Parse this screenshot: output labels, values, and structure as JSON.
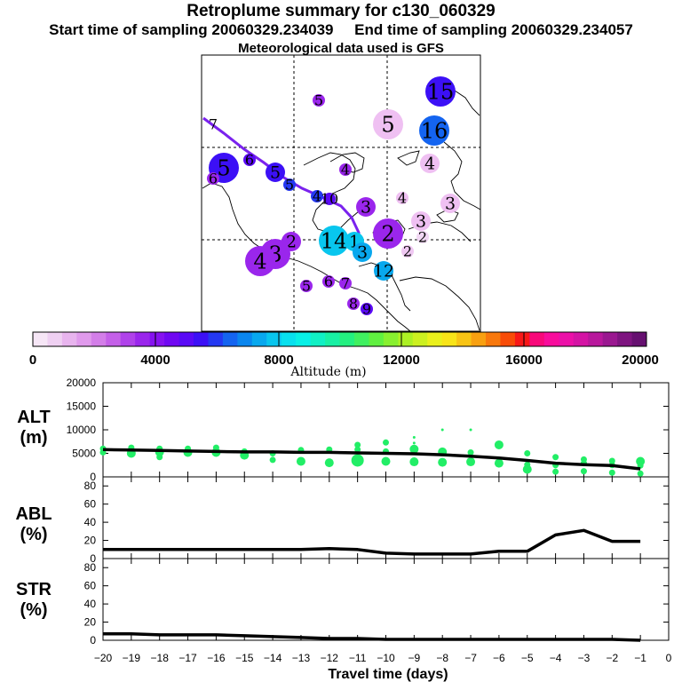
{
  "header": {
    "title": "Retroplume summary for c130_060329",
    "subtitle": "Start time of sampling 20060329.234039     End time of sampling 20060329.234057",
    "met_line": "Meteorological data used is GFS"
  },
  "colors": {
    "trajectory": "#7a22ee",
    "alt_points": "#22ee66",
    "line": "#000000",
    "colorbar": [
      "#f6e6f6",
      "#efd0f2",
      "#e8b4ee",
      "#e09aec",
      "#d37ee8",
      "#c460e8",
      "#b042ea",
      "#9a26ec",
      "#8612f0",
      "#7008f2",
      "#5a0af6",
      "#3c10f6",
      "#2438f2",
      "#1464f0",
      "#0a86ee",
      "#08a8ee",
      "#08c6ee",
      "#08e0ee",
      "#08f0e6",
      "#10f0c4",
      "#18f0a4",
      "#24f080",
      "#40f060",
      "#60f040",
      "#88f030",
      "#acf024",
      "#ccf020",
      "#eaf01c",
      "#f8e418",
      "#f8c414",
      "#f8a010",
      "#f8780c",
      "#f84c08",
      "#f81818",
      "#f8087a",
      "#f80c9c",
      "#ec10a8",
      "#d414a4",
      "#b8189c",
      "#9a1890",
      "#7e1480",
      "#661070"
    ]
  },
  "map": {
    "plumes": [
      {
        "label": "15",
        "color": "#3c10f6",
        "size": 3
      },
      {
        "label": "16",
        "color": "#1464f0",
        "size": 3
      },
      {
        "label": "5",
        "color": "#efc0f2",
        "size": 3
      },
      {
        "label": "4",
        "color": "#efc0f2",
        "size": 2
      },
      {
        "label": "3",
        "color": "#efc0f2",
        "size": 2
      },
      {
        "label": "3",
        "color": "#efc0f2",
        "size": 2
      },
      {
        "label": "2",
        "color": "#f2d8f4",
        "size": 1
      },
      {
        "label": "2",
        "color": "#efc8f2",
        "size": 1
      },
      {
        "label": "4",
        "color": "#efc0f2",
        "size": 1
      },
      {
        "label": "5",
        "color": "#9a26ec",
        "size": 1
      },
      {
        "label": "4",
        "color": "#9a26ec",
        "size": 1
      },
      {
        "label": "5",
        "color": "#3c10f6",
        "size": 3
      },
      {
        "label": "6",
        "color": "#9a26ec",
        "size": 1
      },
      {
        "label": "6",
        "color": "#5a0af6",
        "size": 1
      },
      {
        "label": "5",
        "color": "#3c10f6",
        "size": 2
      },
      {
        "label": "5",
        "color": "#2438f2",
        "size": 1
      },
      {
        "label": "4",
        "color": "#2438f2",
        "size": 1
      },
      {
        "label": "3",
        "color": "#9a26ec",
        "size": 2
      },
      {
        "label": "2",
        "color": "#9a26ec",
        "size": 3
      },
      {
        "label": "14",
        "color": "#08c6ee",
        "size": 3
      },
      {
        "label": "1",
        "color": "#08c6ee",
        "size": 2
      },
      {
        "label": "3",
        "color": "#08a8ee",
        "size": 2
      },
      {
        "label": "2",
        "color": "#9a26ec",
        "size": 2
      },
      {
        "label": "3",
        "color": "#9a26ec",
        "size": 3
      },
      {
        "label": "4",
        "color": "#9a26ec",
        "size": 3
      },
      {
        "label": "12",
        "color": "#08a8ee",
        "size": 2
      },
      {
        "label": "5",
        "color": "#9a26ec",
        "size": 1
      },
      {
        "label": "6",
        "color": "#9a26ec",
        "size": 1
      },
      {
        "label": "7",
        "color": "#9a26ec",
        "size": 1
      },
      {
        "label": "8",
        "color": "#9a26ec",
        "size": 1
      },
      {
        "label": "9",
        "color": "#5a0af6",
        "size": 1
      },
      {
        "label": "10",
        "color": "#5a0af6",
        "size": 1
      },
      {
        "label": "7",
        "color": "#9a26ec",
        "size": 0
      }
    ]
  },
  "colorbar": {
    "ticks": [
      "0",
      "4000",
      "8000",
      "12000",
      "16000",
      "20000"
    ],
    "label": "Altitude (m)"
  },
  "chart_data": [
    {
      "type": "line",
      "name": "ALT",
      "ylabel_top": "ALT",
      "ylabel_bottom": "(m)",
      "ylim": [
        0,
        20000
      ],
      "yticks": [
        "0",
        "5000",
        "10000",
        "15000",
        "20000"
      ],
      "x": [
        -20,
        -19,
        -18,
        -17,
        -16,
        -15,
        -14,
        -13,
        -12,
        -11,
        -10,
        -9,
        -8,
        -7,
        -6,
        -5,
        -4,
        -3,
        -2,
        -1
      ],
      "values": [
        5800,
        5700,
        5600,
        5500,
        5400,
        5300,
        5300,
        5200,
        5200,
        5100,
        5000,
        4900,
        4700,
        4400,
        4000,
        3500,
        2900,
        2600,
        2400,
        1700
      ],
      "scatter": [
        {
          "x": -20,
          "y": 6000,
          "s": 1
        },
        {
          "x": -20,
          "y": 5200,
          "s": 1
        },
        {
          "x": -19,
          "y": 6200,
          "s": 1
        },
        {
          "x": -19,
          "y": 5000,
          "s": 2
        },
        {
          "x": -18,
          "y": 6000,
          "s": 1
        },
        {
          "x": -18,
          "y": 5300,
          "s": 2
        },
        {
          "x": -18,
          "y": 4200,
          "s": 1
        },
        {
          "x": -17,
          "y": 6000,
          "s": 1
        },
        {
          "x": -17,
          "y": 5200,
          "s": 2
        },
        {
          "x": -16,
          "y": 6200,
          "s": 1
        },
        {
          "x": -16,
          "y": 5200,
          "s": 2
        },
        {
          "x": -15,
          "y": 5400,
          "s": 1
        },
        {
          "x": -15,
          "y": 4600,
          "s": 2
        },
        {
          "x": -14,
          "y": 5000,
          "s": 1
        },
        {
          "x": -14,
          "y": 3600,
          "s": 1
        },
        {
          "x": -13,
          "y": 5700,
          "s": 1
        },
        {
          "x": -13,
          "y": 3300,
          "s": 2
        },
        {
          "x": -12,
          "y": 5800,
          "s": 1
        },
        {
          "x": -12,
          "y": 3000,
          "s": 2
        },
        {
          "x": -11,
          "y": 6800,
          "s": 1
        },
        {
          "x": -11,
          "y": 5800,
          "s": 1
        },
        {
          "x": -11,
          "y": 3500,
          "s": 3
        },
        {
          "x": -10,
          "y": 7300,
          "s": 1
        },
        {
          "x": -10,
          "y": 5400,
          "s": 1
        },
        {
          "x": -10,
          "y": 3300,
          "s": 2
        },
        {
          "x": -9,
          "y": 8400,
          "s": 0
        },
        {
          "x": -9,
          "y": 7200,
          "s": 0
        },
        {
          "x": -9,
          "y": 5900,
          "s": 2
        },
        {
          "x": -9,
          "y": 3200,
          "s": 2
        },
        {
          "x": -8,
          "y": 10000,
          "s": 0
        },
        {
          "x": -8,
          "y": 5300,
          "s": 2
        },
        {
          "x": -8,
          "y": 3100,
          "s": 2
        },
        {
          "x": -7,
          "y": 10000,
          "s": 0
        },
        {
          "x": -7,
          "y": 5200,
          "s": 1
        },
        {
          "x": -7,
          "y": 3200,
          "s": 2
        },
        {
          "x": -6,
          "y": 6800,
          "s": 2
        },
        {
          "x": -6,
          "y": 2900,
          "s": 2
        },
        {
          "x": -5,
          "y": 5000,
          "s": 1
        },
        {
          "x": -5,
          "y": 2600,
          "s": 1
        },
        {
          "x": -5,
          "y": 1600,
          "s": 2
        },
        {
          "x": -4,
          "y": 4200,
          "s": 1
        },
        {
          "x": -4,
          "y": 2500,
          "s": 1
        },
        {
          "x": -4,
          "y": 1100,
          "s": 1
        },
        {
          "x": -3,
          "y": 3700,
          "s": 1
        },
        {
          "x": -3,
          "y": 2900,
          "s": 1
        },
        {
          "x": -3,
          "y": 1200,
          "s": 1
        },
        {
          "x": -2,
          "y": 3400,
          "s": 1
        },
        {
          "x": -2,
          "y": 2500,
          "s": 1
        },
        {
          "x": -2,
          "y": 900,
          "s": 1
        },
        {
          "x": -1,
          "y": 3300,
          "s": 2
        },
        {
          "x": -1,
          "y": 2400,
          "s": 1
        },
        {
          "x": -1,
          "y": 700,
          "s": 1
        }
      ]
    },
    {
      "type": "line",
      "name": "ABL",
      "ylabel_top": "ABL",
      "ylabel_bottom": "(%)",
      "ylim": [
        0,
        90
      ],
      "yticks": [
        "0",
        "20",
        "40",
        "60",
        "80"
      ],
      "x": [
        -20,
        -19,
        -18,
        -17,
        -16,
        -15,
        -14,
        -13,
        -12,
        -11,
        -10,
        -9,
        -8,
        -7,
        -6,
        -5,
        -4,
        -3,
        -2,
        -1
      ],
      "values": [
        10,
        10,
        10,
        10,
        10,
        10,
        10,
        10,
        11,
        10,
        6,
        5,
        5,
        5,
        8,
        8,
        26,
        31,
        19,
        19
      ]
    },
    {
      "type": "line",
      "name": "STR",
      "ylabel_top": "STR",
      "ylabel_bottom": "(%)",
      "ylim": [
        0,
        90
      ],
      "yticks": [
        "0",
        "20",
        "40",
        "60",
        "80"
      ],
      "x": [
        -20,
        -19,
        -18,
        -17,
        -16,
        -15,
        -14,
        -13,
        -12,
        -11,
        -10,
        -9,
        -8,
        -7,
        -6,
        -5,
        -4,
        -3,
        -2,
        -1
      ],
      "values": [
        7,
        7,
        6,
        6,
        6,
        5,
        4,
        3,
        2,
        2,
        1,
        1,
        1,
        1,
        1,
        1,
        1,
        1,
        1,
        0
      ],
      "xlabel": "Travel time (days)",
      "xticks": [
        "−20",
        "−19",
        "−18",
        "−17",
        "−16",
        "−15",
        "−14",
        "−13",
        "−12",
        "−11",
        "−10",
        "−9",
        "−8",
        "−7",
        "−6",
        "−5",
        "−4",
        "−3",
        "−2",
        "−1",
        "0"
      ]
    }
  ]
}
